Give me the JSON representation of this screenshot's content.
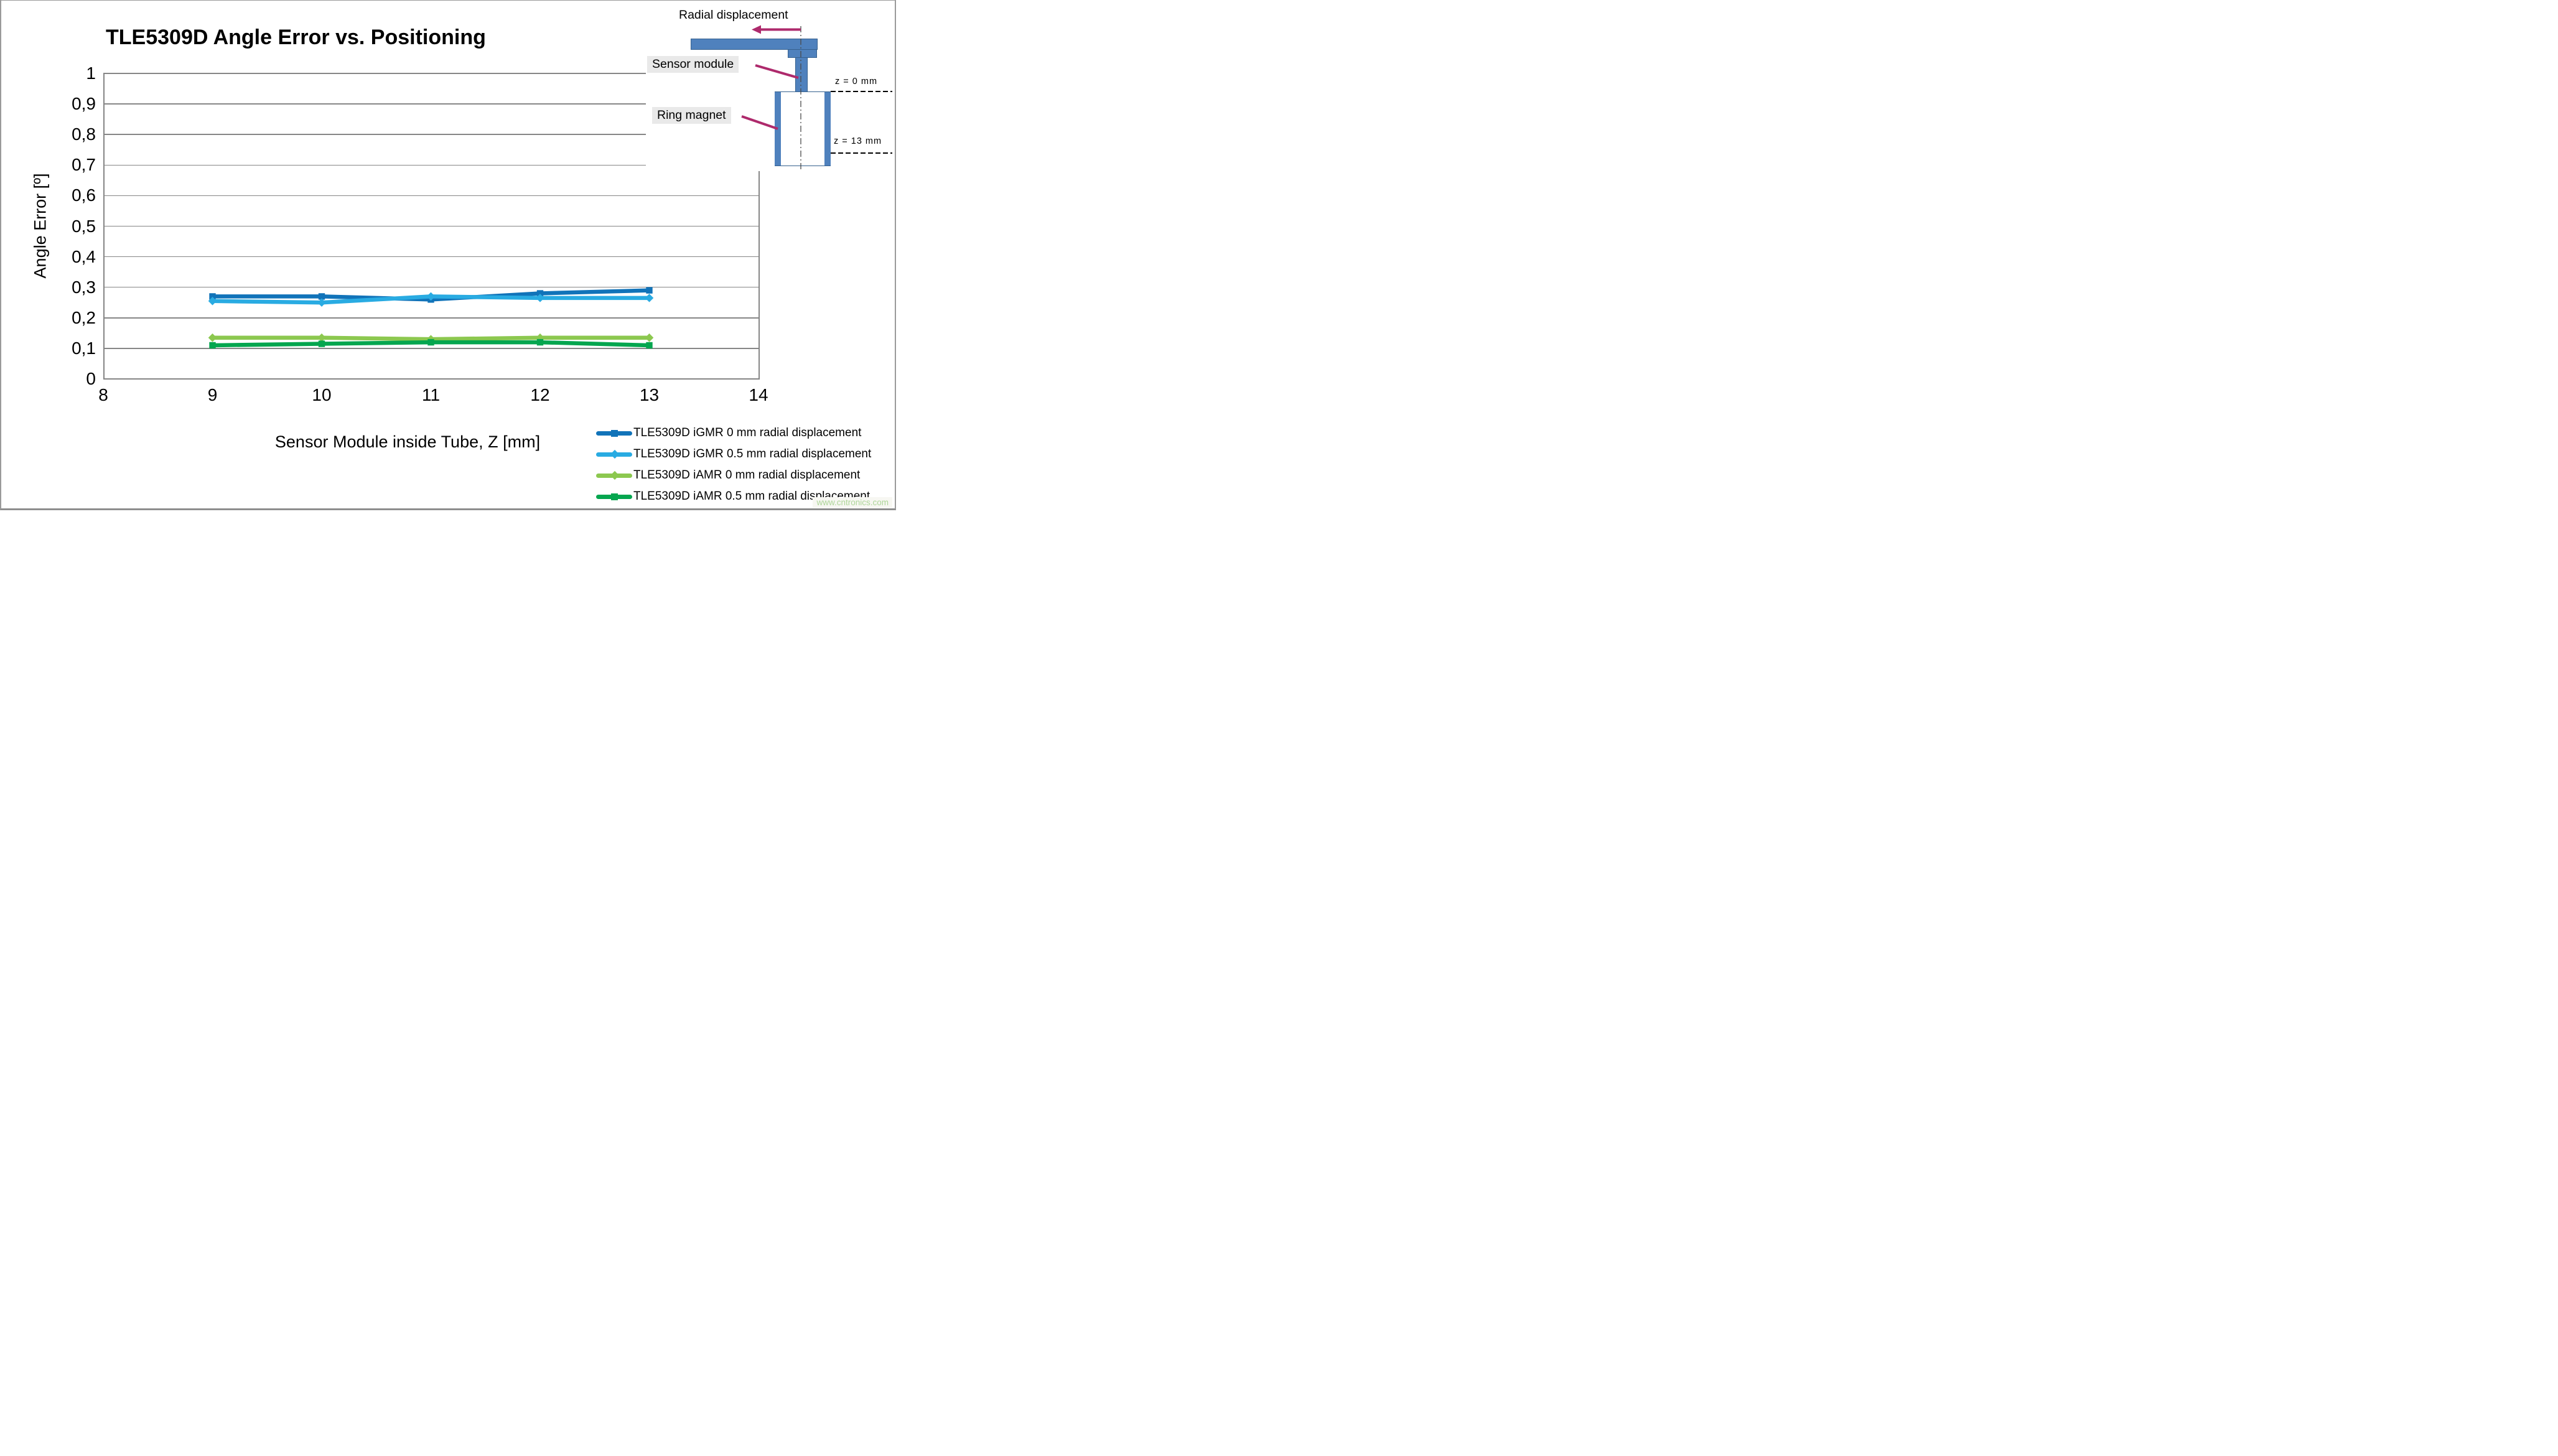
{
  "title": "TLE5309D Angle Error vs. Positioning",
  "watermark": "www.cntronics.com",
  "colors": {
    "grid": "#868686",
    "igmr0": "#1173b9",
    "igmr05": "#29abe2",
    "iamr0": "#8cc84f",
    "iamr05": "#05a64f"
  },
  "chart_data": {
    "type": "line",
    "title": "TLE5309D Angle Error vs. Positioning",
    "xlabel": "Sensor Module inside Tube, Z [mm]",
    "ylabel": "Angle Error [º]",
    "xlim": [
      8,
      14
    ],
    "ylim": [
      0,
      1
    ],
    "grid": "horizontal-only",
    "legend_position": "bottom-right",
    "x_ticks": [
      "8",
      "9",
      "10",
      "11",
      "12",
      "13",
      "14"
    ],
    "x_tick_values": [
      8,
      9,
      10,
      11,
      12,
      13,
      14
    ],
    "y_ticks": [
      "1",
      "0,9",
      "0,8",
      "0,7",
      "0,6",
      "0,5",
      "0,4",
      "0,3",
      "0,2",
      "0,1",
      "0"
    ],
    "y_tick_values": [
      1,
      0.9,
      0.8,
      0.7,
      0.6,
      0.5,
      0.4,
      0.3,
      0.2,
      0.1,
      0
    ],
    "x": [
      9,
      10,
      11,
      12,
      13
    ],
    "series": [
      {
        "name": "TLE5309D iGMR 0 mm radial displacement",
        "color": "#1173b9",
        "marker": "square",
        "values": [
          0.27,
          0.27,
          0.26,
          0.28,
          0.29
        ]
      },
      {
        "name": "TLE5309D iGMR 0.5 mm radial displacement",
        "color": "#29abe2",
        "marker": "diamond",
        "values": [
          0.255,
          0.25,
          0.27,
          0.265,
          0.265
        ]
      },
      {
        "name": "TLE5309D iAMR 0 mm radial displacement",
        "color": "#8cc84f",
        "marker": "diamond",
        "values": [
          0.135,
          0.135,
          0.13,
          0.135,
          0.135
        ]
      },
      {
        "name": "TLE5309D iAMR 0.5 mm radial displacement",
        "color": "#05a64f",
        "marker": "square",
        "values": [
          0.11,
          0.115,
          0.12,
          0.12,
          0.11
        ]
      }
    ]
  },
  "diagram": {
    "radial_displacement_label": "Radial displacement",
    "sensor_module_label": "Sensor module",
    "ring_magnet_label": "Ring magnet",
    "z0_label": "z = 0 mm",
    "z13_label": "z = 13 mm",
    "shape_fill": "#4f81bd",
    "shape_border": "#36618e",
    "arrow_color": "#ae2a6c",
    "label_bg": "#e9e9e9",
    "dashed_line_color": "#000000",
    "center_line_color": "#4a4a4a"
  }
}
